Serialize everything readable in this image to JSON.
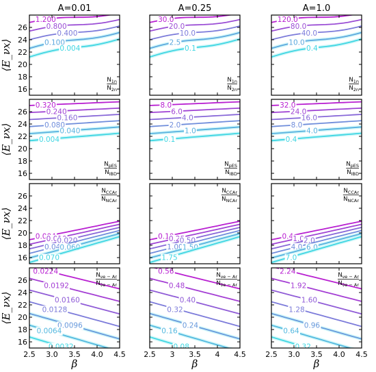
{
  "chart_data": {
    "type": "contour",
    "column_titles": [
      "A=0.01",
      "A=0.25",
      "A=1.0"
    ],
    "xlabel": "β",
    "ylabel": "⟨E_νx⟩",
    "xlim": [
      2.5,
      4.5
    ],
    "ylim": [
      15,
      28
    ],
    "x_ticks": [
      "2.5",
      "3.0",
      "3.5",
      "4.0",
      "4.5"
    ],
    "x_ticks_mid": [
      "2.5",
      "3",
      "3.5",
      "4",
      "4.5"
    ],
    "y_ticks": [
      "16",
      "18",
      "20",
      "22",
      "24",
      "26"
    ],
    "rows": [
      {
        "ratio_label": {
          "num": "N",
          "num_sub": "1n",
          "den": "N",
          "den_sub": "2n"
        },
        "panels": [
          {
            "levels": [
              "1.200",
              "0.800",
              "0.400",
              "0.100",
              "0.004"
            ]
          },
          {
            "levels": [
              "30.0",
              "20.0",
              "10.0",
              "2.5",
              "0.1"
            ]
          },
          {
            "levels": [
              "120.0",
              "80.0",
              "40.0",
              "10.0",
              "0.4"
            ]
          }
        ]
      },
      {
        "ratio_label": {
          "num": "N",
          "num_sub": "pES",
          "den": "N",
          "den_sub": "IBD"
        },
        "panels": [
          {
            "levels": [
              "0.320",
              "0.240",
              "0.160",
              "0.080",
              "0.040",
              "0.004"
            ]
          },
          {
            "levels": [
              "8.0",
              "6.0",
              "4.0",
              "2.0",
              "1.0",
              "0.1"
            ]
          },
          {
            "levels": [
              "32.0",
              "24.0",
              "16.0",
              "8.0",
              "4.0",
              "0.4"
            ]
          }
        ]
      },
      {
        "ratio_label": {
          "num": "N",
          "num_sub": "CC",
          "num_subsub": "Ar",
          "den": "N",
          "den_sub": "NC",
          "den_subsub": "Ar"
        },
        "panels": [
          {
            "levels": [
              "0.004",
              "0.010",
              "0.020",
              "0.040",
              "0.060",
              "0.070"
            ]
          },
          {
            "levels": [
              "0.10",
              "0.25",
              "0.50",
              "1.00",
              "1.50",
              "1.75"
            ]
          },
          {
            "levels": [
              "0.4",
              "1.0",
              "2.0",
              "4.0",
              "6.0",
              "7.0"
            ]
          }
        ]
      },
      {
        "ratio_label": {
          "num": "N",
          "num_sub": "νe − Ar",
          "den": "N",
          "den_sub": "ν̄e − Ar"
        },
        "panels": [
          {
            "levels": [
              "0.0224",
              "0.0192",
              "0.0160",
              "0.0128",
              "0.0096",
              "0.0064",
              "0.0032"
            ]
          },
          {
            "levels": [
              "0.56",
              "0.48",
              "0.40",
              "0.32",
              "0.24",
              "0.16",
              "0.08"
            ]
          },
          {
            "levels": [
              "2.24",
              "1.92",
              "1.60",
              "1.28",
              "0.96",
              "0.64",
              "0.32"
            ]
          }
        ]
      }
    ]
  }
}
